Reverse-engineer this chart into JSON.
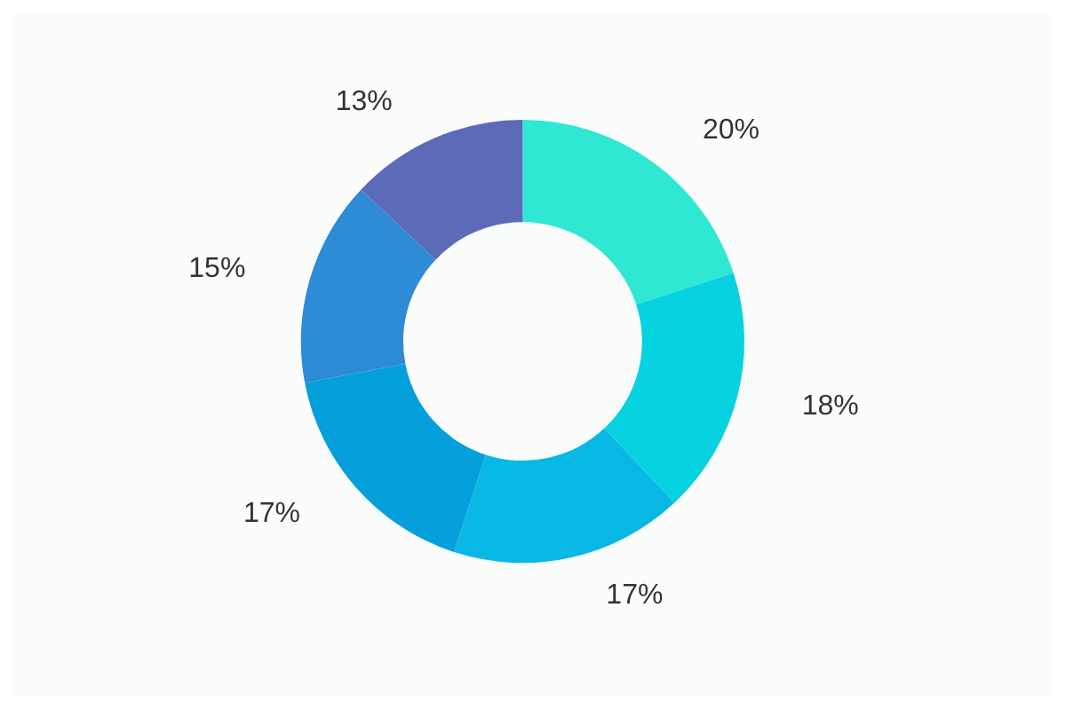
{
  "chart_data": {
    "type": "donut",
    "categories": [
      null,
      null,
      null,
      null,
      null,
      null
    ],
    "values": [
      20,
      18,
      17,
      17,
      15,
      13
    ],
    "colors": [
      "#2ee8d4",
      "#06d2e0",
      "#08b8e4",
      "#05a0dc",
      "#2e8bd5",
      "#5b6bb8"
    ],
    "value_labels": [
      "20%",
      "18%",
      "17%",
      "17%",
      "15%",
      "13%"
    ]
  }
}
